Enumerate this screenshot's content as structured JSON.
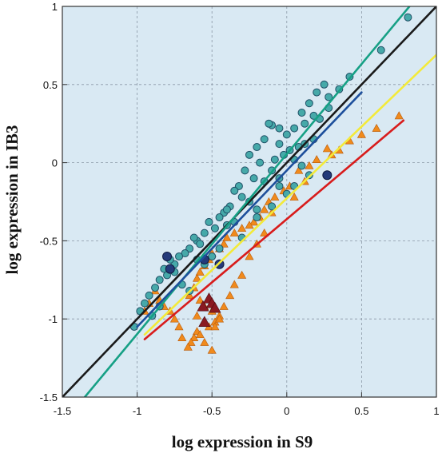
{
  "chart_data": {
    "type": "scatter",
    "title": "",
    "xlabel": "log expression in S9",
    "ylabel": "log expression in IB3",
    "xlim": [
      -1.5,
      1
    ],
    "ylim": [
      -1.5,
      1
    ],
    "xticks": [
      "-1.5",
      "-1",
      "-0.5",
      "0",
      "0.5",
      "1"
    ],
    "yticks": [
      "-1.5",
      "-1",
      "-0.5",
      "0",
      "0.5",
      "1"
    ],
    "grid": true,
    "legend": "none",
    "colors": {
      "background": "#d9e9f3",
      "grid": "#8a98a6",
      "circle_fill": "#46a9a9",
      "circle_stroke": "#1f4f66",
      "triangle_fill": "#f08a1c",
      "triangle_stroke": "#b85a0a",
      "dark_triangle": "#8a1a22",
      "dark_circle": "#243a7a",
      "line_black": "#1a1a1a",
      "line_green": "#16a085",
      "line_blue": "#1d4f9c",
      "line_yellow": "#f3ea3a",
      "line_red": "#d81c1c"
    },
    "lines": [
      {
        "color": "line_black",
        "x": [
          -1.5,
          1.0
        ],
        "y": [
          -1.5,
          1.0
        ]
      },
      {
        "color": "line_green",
        "x": [
          -1.35,
          0.82
        ],
        "y": [
          -1.5,
          1.0
        ]
      },
      {
        "color": "line_blue",
        "x": [
          -1.0,
          0.5
        ],
        "y": [
          -1.05,
          0.45
        ]
      },
      {
        "color": "line_yellow",
        "x": [
          -0.95,
          1.0
        ],
        "y": [
          -1.1,
          0.69
        ]
      },
      {
        "color": "line_red",
        "x": [
          -0.95,
          0.78
        ],
        "y": [
          -1.13,
          0.27
        ]
      }
    ],
    "series": [
      {
        "marker": "circle",
        "fill": "circle_fill",
        "x": [
          0.81,
          0.63,
          0.42,
          0.35,
          0.28,
          0.25,
          0.2,
          0.15,
          0.1,
          0.28,
          0.22,
          0.18,
          0.12,
          0.05,
          0.0,
          -0.05,
          -0.1,
          -0.12,
          0.18,
          0.12,
          0.08,
          0.02,
          -0.02,
          -0.08,
          -0.05,
          0.05,
          0.1,
          -0.15,
          -0.2,
          -0.25,
          -0.18,
          -0.1,
          -0.05,
          -0.15,
          -0.22,
          -0.28,
          -0.32,
          -0.35,
          -0.3,
          -0.25,
          -0.2,
          -0.38,
          -0.42,
          -0.45,
          -0.4,
          -0.48,
          -0.52,
          -0.55,
          -0.6,
          -0.65,
          -0.62,
          -0.58,
          -0.5,
          -0.45,
          -0.55,
          -0.6,
          -0.68,
          -0.72,
          -0.75,
          -0.78,
          -0.82,
          -0.85,
          -0.8,
          -0.75,
          -0.7,
          -0.65,
          -0.88,
          -0.92,
          -0.95,
          -0.98,
          -1.02,
          -0.9,
          -0.85,
          -0.35,
          -0.3,
          -0.4,
          -0.2,
          -0.1,
          0.0,
          -0.05,
          0.15,
          0.05
        ],
        "y": [
          0.93,
          0.72,
          0.55,
          0.47,
          0.42,
          0.5,
          0.45,
          0.38,
          0.32,
          0.35,
          0.28,
          0.3,
          0.25,
          0.22,
          0.18,
          0.22,
          0.24,
          0.25,
          0.15,
          0.12,
          0.1,
          0.08,
          0.05,
          0.02,
          0.12,
          0.02,
          -0.02,
          0.15,
          0.1,
          0.05,
          0.0,
          -0.05,
          -0.1,
          -0.12,
          -0.1,
          -0.05,
          -0.15,
          -0.18,
          -0.22,
          -0.25,
          -0.3,
          -0.28,
          -0.32,
          -0.35,
          -0.4,
          -0.42,
          -0.38,
          -0.45,
          -0.5,
          -0.55,
          -0.48,
          -0.52,
          -0.6,
          -0.55,
          -0.65,
          -0.62,
          -0.58,
          -0.6,
          -0.65,
          -0.62,
          -0.68,
          -0.75,
          -0.72,
          -0.7,
          -0.78,
          -0.82,
          -0.8,
          -0.85,
          -0.9,
          -0.95,
          -1.05,
          -0.98,
          -0.92,
          -0.38,
          -0.48,
          -0.3,
          -0.35,
          -0.28,
          -0.2,
          -0.15,
          -0.08,
          -0.15
        ]
      },
      {
        "marker": "triangle",
        "fill": "triangle_fill",
        "x": [
          0.75,
          0.6,
          0.5,
          0.42,
          0.35,
          0.3,
          0.27,
          0.2,
          0.15,
          0.08,
          0.02,
          -0.02,
          -0.08,
          -0.12,
          -0.15,
          -0.18,
          -0.22,
          -0.25,
          -0.3,
          -0.35,
          -0.4,
          -0.42,
          -0.45,
          -0.5,
          -0.52,
          -0.55,
          -0.58,
          -0.6,
          -0.62,
          -0.65,
          -0.58,
          -0.55,
          -0.5,
          -0.45,
          -0.48,
          -0.52,
          -0.6,
          -0.62,
          -0.64,
          -0.66,
          -0.7,
          -0.72,
          -0.75,
          -0.78,
          -0.82,
          -0.85,
          -0.88,
          -0.92,
          -0.95,
          -0.6,
          -0.58,
          -0.55,
          -0.5,
          -0.48,
          -0.45,
          -0.42,
          -0.38,
          -0.35,
          -0.3,
          -0.1,
          0.05,
          0.12,
          -0.25,
          -0.2,
          -0.15
        ],
        "y": [
          0.3,
          0.22,
          0.18,
          0.14,
          0.08,
          0.05,
          0.09,
          0.02,
          -0.02,
          -0.05,
          -0.15,
          -0.18,
          -0.22,
          -0.25,
          -0.3,
          -0.35,
          -0.38,
          -0.4,
          -0.42,
          -0.45,
          -0.48,
          -0.52,
          -0.55,
          -0.58,
          -0.62,
          -0.66,
          -0.7,
          -0.74,
          -0.8,
          -0.85,
          -0.88,
          -0.92,
          -0.95,
          -0.98,
          -1.02,
          -1.05,
          -1.08,
          -1.12,
          -1.15,
          -1.18,
          -1.12,
          -1.05,
          -1.0,
          -0.95,
          -0.92,
          -0.88,
          -0.82,
          -0.9,
          -0.95,
          -0.98,
          -1.1,
          -1.15,
          -1.2,
          -1.05,
          -1.0,
          -0.92,
          -0.85,
          -0.78,
          -0.72,
          -0.32,
          -0.22,
          -0.12,
          -0.6,
          -0.52,
          -0.45
        ]
      },
      {
        "marker": "triangle",
        "fill": "dark_triangle",
        "x": [
          -0.52,
          -0.5,
          -0.48,
          -0.55,
          -0.56
        ],
        "y": [
          -0.87,
          -0.9,
          -0.93,
          -1.02,
          -0.92
        ]
      },
      {
        "marker": "circle",
        "fill": "dark_circle",
        "x": [
          -0.8,
          -0.55,
          -0.45,
          0.27,
          -0.78
        ],
        "y": [
          -0.6,
          -0.62,
          -0.65,
          -0.08,
          -0.68
        ]
      }
    ]
  }
}
